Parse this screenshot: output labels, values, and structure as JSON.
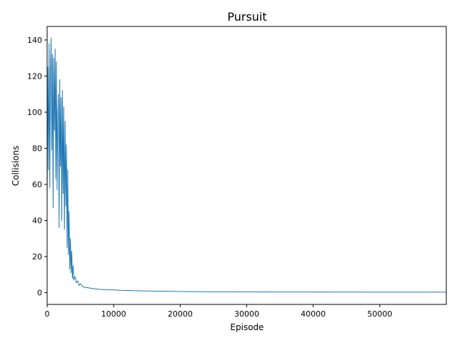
{
  "chart_data": {
    "type": "line",
    "title": "Pursuit",
    "xlabel": "Episode",
    "ylabel": "Collisions",
    "xlim": [
      0,
      60000
    ],
    "ylim": [
      -6.5,
      147.5
    ],
    "grid": false,
    "x_ticks": [
      0,
      10000,
      20000,
      30000,
      40000,
      50000
    ],
    "x_tick_labels": [
      "0",
      "10000",
      "20000",
      "30000",
      "40000",
      "50000"
    ],
    "y_ticks": [
      0,
      20,
      40,
      60,
      80,
      100,
      120,
      140
    ],
    "y_tick_labels": [
      "0",
      "20",
      "40",
      "60",
      "80",
      "100",
      "120",
      "140"
    ],
    "line_color": "#1f77b4",
    "series": [
      {
        "x": [
          0,
          100,
          200,
          300,
          400,
          500,
          600,
          700,
          800,
          900,
          1000,
          1100,
          1200,
          1300,
          1400,
          1500,
          1600,
          1700,
          1800,
          1900,
          2000,
          2100,
          2200,
          2300,
          2400,
          2500,
          2600,
          2700,
          2800,
          2900,
          3000,
          3100,
          3200,
          3300,
          3400,
          3500,
          3600,
          3700,
          3800,
          3900,
          4000,
          4200,
          4400,
          4600,
          4800,
          5000,
          5300,
          5600,
          6000,
          6500,
          7000,
          7500,
          8000,
          9000,
          10000,
          11000,
          12000,
          13000,
          14000,
          15000,
          17000,
          19000,
          21000,
          23000,
          25000,
          28000,
          31000,
          34000,
          37000,
          40000,
          43000,
          46000,
          49000,
          52000,
          55000,
          58000,
          60000
        ],
        "y": [
          52,
          125,
          68,
          138,
          58,
          120,
          141,
          79,
          132,
          47,
          130,
          90,
          135,
          63,
          128,
          57,
          98,
          110,
          36,
          118,
          70,
          108,
          40,
          112,
          55,
          103,
          35,
          95,
          48,
          82,
          25,
          68,
          21,
          45,
          13,
          30,
          11,
          23,
          8,
          15,
          7,
          9,
          5.5,
          6.5,
          4,
          5,
          3.5,
          3,
          2.8,
          2.5,
          2.2,
          2,
          1.8,
          1.6,
          1.5,
          1.3,
          1.2,
          1.1,
          1,
          0.9,
          0.8,
          0.7,
          0.6,
          0.6,
          0.5,
          0.5,
          0.45,
          0.4,
          0.4,
          0.4,
          0.35,
          0.35,
          0.3,
          0.3,
          0.3,
          0.3,
          0.3
        ]
      }
    ]
  }
}
